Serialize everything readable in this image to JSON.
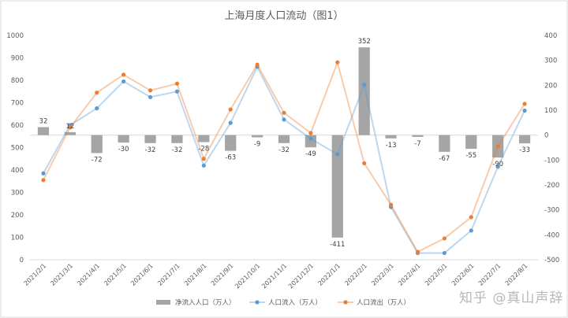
{
  "chart_data": {
    "type": "bar+line",
    "title": "上海月度人口流动（图1）",
    "categories": [
      "2021/2/1",
      "2021/3/1",
      "2021/4/1",
      "2021/5/1",
      "2021/6/1",
      "2021/7/1",
      "2021/8/1",
      "2021/9/1",
      "2021/10/1",
      "2021/11/1",
      "2021/12/1",
      "2022/1/1",
      "2022/2/1",
      "2022/3/1",
      "2022/4/1",
      "2022/5/1",
      "2022/6/1",
      "2022/7/1",
      "2022/8/1"
    ],
    "left_axis": {
      "min": 0,
      "max": 1000,
      "ticks": [
        0,
        100,
        200,
        300,
        400,
        500,
        600,
        700,
        800,
        900,
        1000
      ]
    },
    "right_axis": {
      "min": -500,
      "max": 400,
      "ticks": [
        -500,
        -400,
        -300,
        -200,
        -100,
        0,
        100,
        200,
        300,
        400
      ]
    },
    "series": [
      {
        "name": "净流入人口（万人）",
        "kind": "bar",
        "axis": "right",
        "color": "#a5a5a5",
        "values": [
          32,
          12,
          -72,
          -30,
          -32,
          -32,
          -28,
          -63,
          -9,
          -32,
          -49,
          -411,
          352,
          -13,
          -7,
          -67,
          -55,
          -90,
          -33
        ],
        "labels": [
          "32",
          "12",
          "-72",
          "-30",
          "-32",
          "-32",
          "-28",
          "-63",
          "-9",
          "-32",
          "-49",
          "-411",
          "352",
          "-13",
          "-7",
          "-67",
          "-55",
          "-90",
          "-33"
        ]
      },
      {
        "name": "人口流入（万人）",
        "kind": "line",
        "axis": "left",
        "color": "#5b9bd5",
        "values": [
          385,
          600,
          675,
          795,
          725,
          750,
          420,
          610,
          860,
          625,
          540,
          470,
          780,
          235,
          30,
          30,
          130,
          415,
          665
        ]
      },
      {
        "name": "人口流出（万人）",
        "kind": "line",
        "axis": "left",
        "color": "#ed7d31",
        "values": [
          355,
          590,
          745,
          825,
          755,
          785,
          450,
          670,
          870,
          655,
          565,
          880,
          430,
          245,
          35,
          95,
          190,
          505,
          695
        ]
      }
    ],
    "legend_position": "bottom",
    "grid": false
  },
  "watermark": "知乎 @真山声辞"
}
